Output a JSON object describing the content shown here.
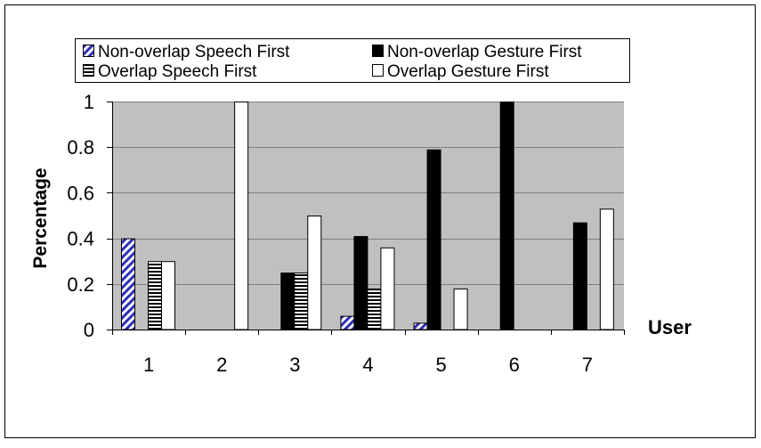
{
  "chart_data": {
    "type": "bar",
    "title": "",
    "xlabel": "User",
    "ylabel": "Percentage",
    "ylim": [
      0,
      1
    ],
    "yticks": [
      "0",
      "0.2",
      "0.4",
      "0.6",
      "0.8",
      "1"
    ],
    "categories": [
      "1",
      "2",
      "3",
      "4",
      "5",
      "6",
      "7"
    ],
    "grid": true,
    "legend_position": "top",
    "plot_background": "#c0c0c0",
    "series": [
      {
        "name": "Non-overlap Speech First",
        "pattern": "diagonal-hatch-blue",
        "values": [
          0.4,
          0,
          0,
          0.06,
          0.03,
          0,
          0
        ]
      },
      {
        "name": "Non-overlap Gesture First",
        "pattern": "solid-black",
        "values": [
          0,
          0,
          0.25,
          0.41,
          0.79,
          1.0,
          0.47
        ]
      },
      {
        "name": "Overlap Speech First",
        "pattern": "horizontal-stripes",
        "values": [
          0.3,
          0,
          0.25,
          0.18,
          0,
          0,
          0
        ]
      },
      {
        "name": "Overlap Gesture First",
        "pattern": "solid-white",
        "values": [
          0.3,
          1.0,
          0.5,
          0.36,
          0.18,
          0,
          0.53
        ]
      }
    ]
  }
}
